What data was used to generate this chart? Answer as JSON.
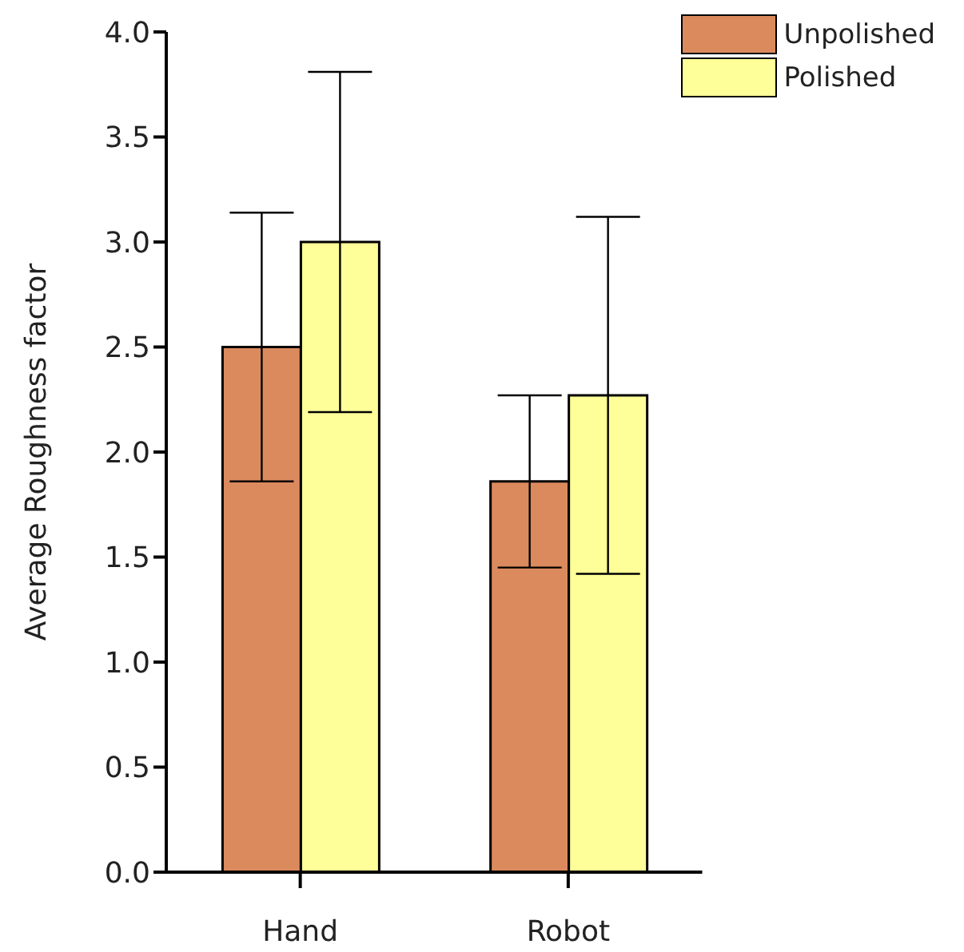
{
  "chart_data": {
    "type": "bar",
    "ylabel": "Average Roughness factor",
    "categories": [
      "Hand",
      "Robot"
    ],
    "series": [
      {
        "name": "Unpolished",
        "color": "#db8a5e",
        "values": [
          2.5,
          1.86
        ],
        "errors": [
          0.64,
          0.41
        ]
      },
      {
        "name": "Polished",
        "color": "#ffff99",
        "values": [
          3.0,
          2.27
        ],
        "errors": [
          0.81,
          0.85
        ]
      }
    ],
    "ylim": [
      0,
      4
    ],
    "yticks": [
      {
        "value": 0,
        "label": "0.0"
      },
      {
        "value": 0.5,
        "label": "0.5"
      },
      {
        "value": 1,
        "label": "1.0"
      },
      {
        "value": 1.5,
        "label": "1.5"
      },
      {
        "value": 2,
        "label": "2.0"
      },
      {
        "value": 2.5,
        "label": "2.5"
      },
      {
        "value": 3,
        "label": "3.0"
      },
      {
        "value": 3.5,
        "label": "3.5"
      },
      {
        "value": 4,
        "label": "4.0"
      }
    ],
    "legend": "top right"
  }
}
